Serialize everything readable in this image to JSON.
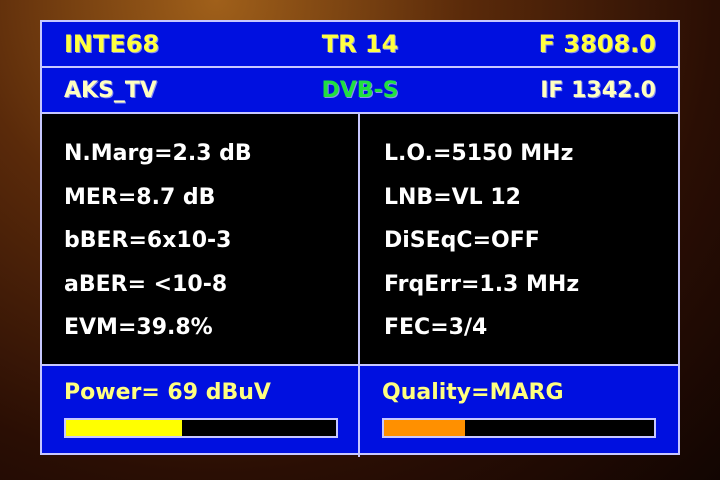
{
  "header": {
    "satellite": "INTE68",
    "transponder": "TR 14",
    "frequency": "F 3808.0"
  },
  "subheader": {
    "channel": "AKS_TV",
    "standard": "DVB-S",
    "if_freq": "IF 1342.0"
  },
  "left_params": [
    "N.Marg=2.3 dB",
    "MER=8.7 dB",
    "bBER=6x10-3",
    "aBER= <10-8",
    "EVM=39.8%"
  ],
  "right_params": [
    "L.O.=5150 MHz",
    "LNB=VL 12",
    "DiSEqC=OFF",
    "FrqErr=1.3 MHz",
    "FEC=3/4"
  ],
  "power": {
    "label": "Power= 69 dBuV",
    "level_percent": 43,
    "color": "#ffff00"
  },
  "quality": {
    "label": "Quality=MARG",
    "level_percent": 30,
    "color": "#ff9000"
  }
}
